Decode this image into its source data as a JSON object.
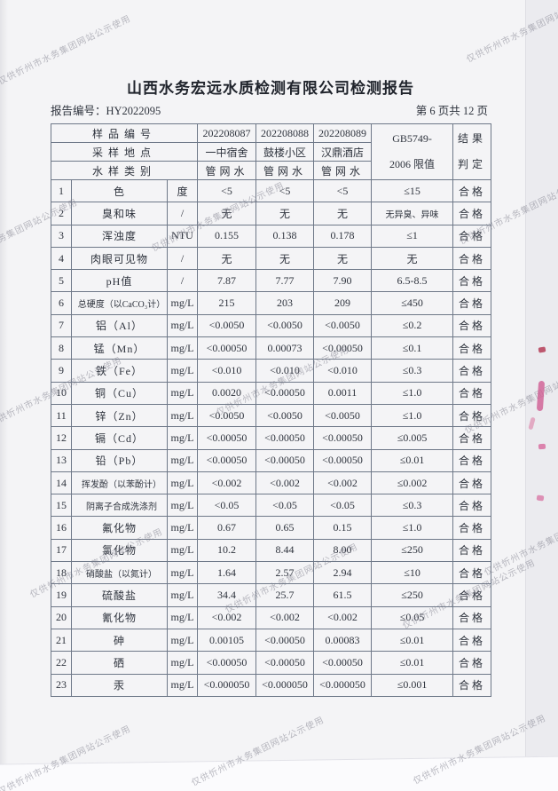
{
  "page": {
    "title": "山西水务宏远水质检测有限公司检测报告",
    "report_no": "报告编号：HY2022095",
    "page_indicator": "第 6 页共 12 页"
  },
  "watermark": {
    "text": "仅供忻州市水务集团网站公示使用"
  },
  "colors": {
    "paper": "#f4f4f6",
    "table_border": "#6e7888",
    "text": "#2e333d",
    "watermark_gray": "#7d7d8a",
    "ink_mark_pink": "#cf5c92",
    "ink_mark_red": "#b53d57"
  },
  "table": {
    "header": {
      "sample_no_label": "样品编号",
      "sample_ids": [
        "202208087",
        "202208088",
        "202208089"
      ],
      "location_label": "采样地点",
      "locations": [
        "一中宿舍",
        "鼓楼小区",
        "汉鼎酒店"
      ],
      "type_label": "水样类别",
      "types": [
        "管网水",
        "管网水",
        "管网水"
      ],
      "limit_label_line1": "GB5749-",
      "limit_label_line2": "2006 限值",
      "result_label_line1": "结果",
      "result_label_line2": "判定"
    },
    "rows": [
      {
        "no": "1",
        "item": "色",
        "unit": "度",
        "v1": "<5",
        "v2": "<5",
        "v3": "<5",
        "limit": "≤15",
        "result": "合格"
      },
      {
        "no": "2",
        "item": "臭和味",
        "unit": "/",
        "v1": "无",
        "v2": "无",
        "v3": "无",
        "limit": "无异臭、异味",
        "result": "合格"
      },
      {
        "no": "3",
        "item": "浑浊度",
        "unit": "NTU",
        "v1": "0.155",
        "v2": "0.138",
        "v3": "0.178",
        "limit": "≤1",
        "result": "合格"
      },
      {
        "no": "4",
        "item": "肉眼可见物",
        "unit": "/",
        "v1": "无",
        "v2": "无",
        "v3": "无",
        "limit": "无",
        "result": "合格"
      },
      {
        "no": "5",
        "item": "pH值",
        "unit": "/",
        "v1": "7.87",
        "v2": "7.77",
        "v3": "7.90",
        "limit": "6.5-8.5",
        "result": "合格"
      },
      {
        "no": "6",
        "item": "总硬度（以CaCO₃计）",
        "unit": "mg/L",
        "v1": "215",
        "v2": "203",
        "v3": "209",
        "limit": "≤450",
        "result": "合格"
      },
      {
        "no": "7",
        "item": "铝（Al）",
        "unit": "mg/L",
        "v1": "<0.0050",
        "v2": "<0.0050",
        "v3": "<0.0050",
        "limit": "≤0.2",
        "result": "合格"
      },
      {
        "no": "8",
        "item": "锰（Mn）",
        "unit": "mg/L",
        "v1": "<0.00050",
        "v2": "0.00073",
        "v3": "<0.00050",
        "limit": "≤0.1",
        "result": "合格"
      },
      {
        "no": "9",
        "item": "铁（Fe）",
        "unit": "mg/L",
        "v1": "<0.010",
        "v2": "<0.010",
        "v3": "<0.010",
        "limit": "≤0.3",
        "result": "合格"
      },
      {
        "no": "10",
        "item": "铜（Cu）",
        "unit": "mg/L",
        "v1": "0.0020",
        "v2": "<0.00050",
        "v3": "0.0011",
        "limit": "≤1.0",
        "result": "合格"
      },
      {
        "no": "11",
        "item": "锌（Zn）",
        "unit": "mg/L",
        "v1": "<0.0050",
        "v2": "<0.0050",
        "v3": "<0.0050",
        "limit": "≤1.0",
        "result": "合格"
      },
      {
        "no": "12",
        "item": "镉（Cd）",
        "unit": "mg/L",
        "v1": "<0.00050",
        "v2": "<0.00050",
        "v3": "<0.00050",
        "limit": "≤0.005",
        "result": "合格"
      },
      {
        "no": "13",
        "item": "铅（Pb）",
        "unit": "mg/L",
        "v1": "<0.00050",
        "v2": "<0.00050",
        "v3": "<0.00050",
        "limit": "≤0.01",
        "result": "合格"
      },
      {
        "no": "14",
        "item": "挥发酚（以苯酚计）",
        "unit": "mg/L",
        "v1": "<0.002",
        "v2": "<0.002",
        "v3": "<0.002",
        "limit": "≤0.002",
        "result": "合格"
      },
      {
        "no": "15",
        "item": "阴离子合成洗涤剂",
        "unit": "mg/L",
        "v1": "<0.05",
        "v2": "<0.05",
        "v3": "<0.05",
        "limit": "≤0.3",
        "result": "合格"
      },
      {
        "no": "16",
        "item": "氟化物",
        "unit": "mg/L",
        "v1": "0.67",
        "v2": "0.65",
        "v3": "0.15",
        "limit": "≤1.0",
        "result": "合格"
      },
      {
        "no": "17",
        "item": "氯化物",
        "unit": "mg/L",
        "v1": "10.2",
        "v2": "8.44",
        "v3": "8.00",
        "limit": "≤250",
        "result": "合格"
      },
      {
        "no": "18",
        "item": "硝酸盐（以氮计）",
        "unit": "mg/L",
        "v1": "1.64",
        "v2": "2.57",
        "v3": "2.94",
        "limit": "≤10",
        "result": "合格"
      },
      {
        "no": "19",
        "item": "硫酸盐",
        "unit": "mg/L",
        "v1": "34.4",
        "v2": "25.7",
        "v3": "61.5",
        "limit": "≤250",
        "result": "合格"
      },
      {
        "no": "20",
        "item": "氰化物",
        "unit": "mg/L",
        "v1": "<0.002",
        "v2": "<0.002",
        "v3": "<0.002",
        "limit": "≤0.05",
        "result": "合格"
      },
      {
        "no": "21",
        "item": "砷",
        "unit": "mg/L",
        "v1": "0.00105",
        "v2": "<0.00050",
        "v3": "0.00083",
        "limit": "≤0.01",
        "result": "合格"
      },
      {
        "no": "22",
        "item": "硒",
        "unit": "mg/L",
        "v1": "<0.00050",
        "v2": "<0.00050",
        "v3": "<0.00050",
        "limit": "≤0.01",
        "result": "合格"
      },
      {
        "no": "23",
        "item": "汞",
        "unit": "mg/L",
        "v1": "<0.000050",
        "v2": "<0.000050",
        "v3": "<0.000050",
        "limit": "≤0.001",
        "result": "合格"
      }
    ]
  }
}
